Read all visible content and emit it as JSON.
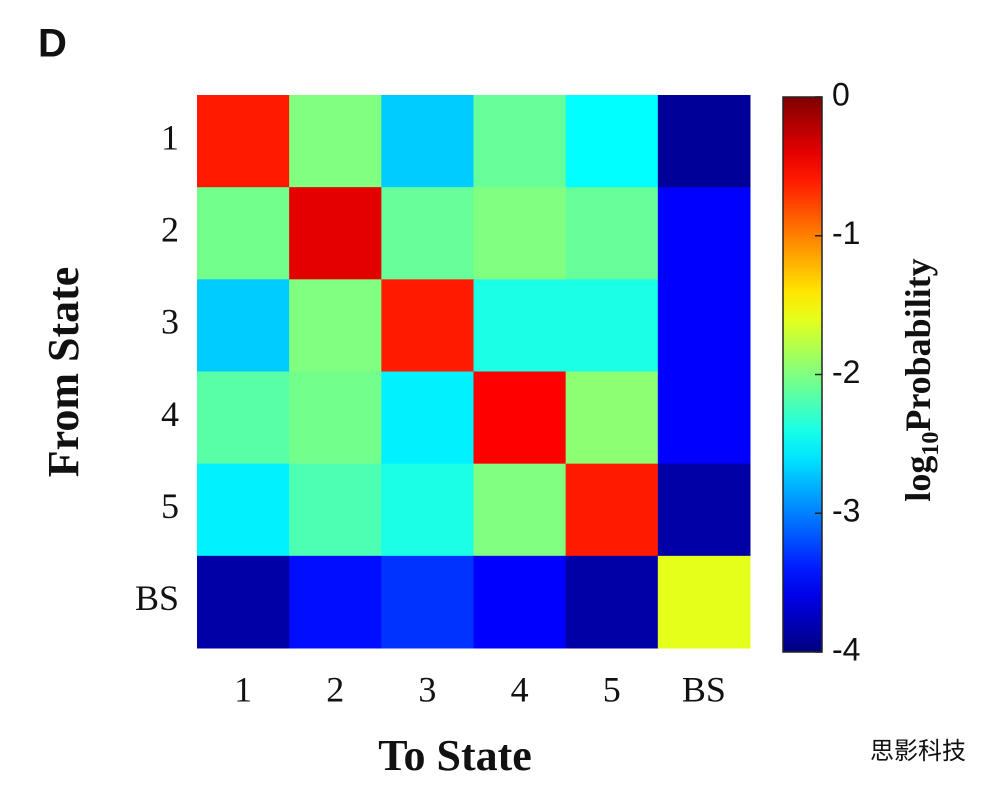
{
  "chart_data": {
    "type": "heatmap",
    "title": "D",
    "x_label": "To State",
    "y_label": "From State",
    "x_categories": [
      "1",
      "2",
      "3",
      "4",
      "5",
      "BS"
    ],
    "y_categories": [
      "1",
      "2",
      "3",
      "4",
      "5",
      "BS"
    ],
    "z": [
      [
        -0.6,
        -2.0,
        -2.7,
        -2.1,
        -2.5,
        -3.9
      ],
      [
        -2.05,
        -0.4,
        -2.1,
        -2.0,
        -2.1,
        -3.5
      ],
      [
        -2.7,
        -2.0,
        -0.6,
        -2.4,
        -2.4,
        -3.5
      ],
      [
        -2.15,
        -2.05,
        -2.55,
        -0.5,
        -1.95,
        -3.5
      ],
      [
        -2.55,
        -2.2,
        -2.4,
        -2.0,
        -0.6,
        -3.85
      ],
      [
        -3.85,
        -3.45,
        -3.3,
        -3.5,
        -3.85,
        -1.6
      ]
    ],
    "colormap": "jet",
    "clim": [
      -4,
      0
    ],
    "cticks": [
      0,
      -1,
      -2,
      -3,
      -4
    ],
    "colorbar_label": [
      "log",
      "10",
      "Probability"
    ],
    "watermark": "思影科技"
  }
}
